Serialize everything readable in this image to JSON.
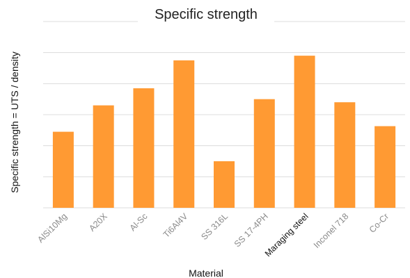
{
  "chart_data": {
    "type": "bar",
    "title": "Specific strength",
    "xlabel": "Material",
    "ylabel": "Specific strength = UTS / density",
    "categories": [
      "AlSi10Mg",
      "A20X",
      "Al-Sc",
      "Ti6Al4V",
      "SS 316L",
      "SS 17-4PH",
      "Maraging steel",
      "Inconel 718",
      "Co-Cr"
    ],
    "values": [
      2.45,
      3.3,
      3.85,
      4.75,
      1.5,
      3.5,
      4.9,
      3.4,
      2.63
    ],
    "ylim": [
      0,
      6
    ],
    "grid": true,
    "ytick_labels_visible": false,
    "bar_color": "#ff9a33",
    "highlighted_category": "Maraging steel"
  }
}
